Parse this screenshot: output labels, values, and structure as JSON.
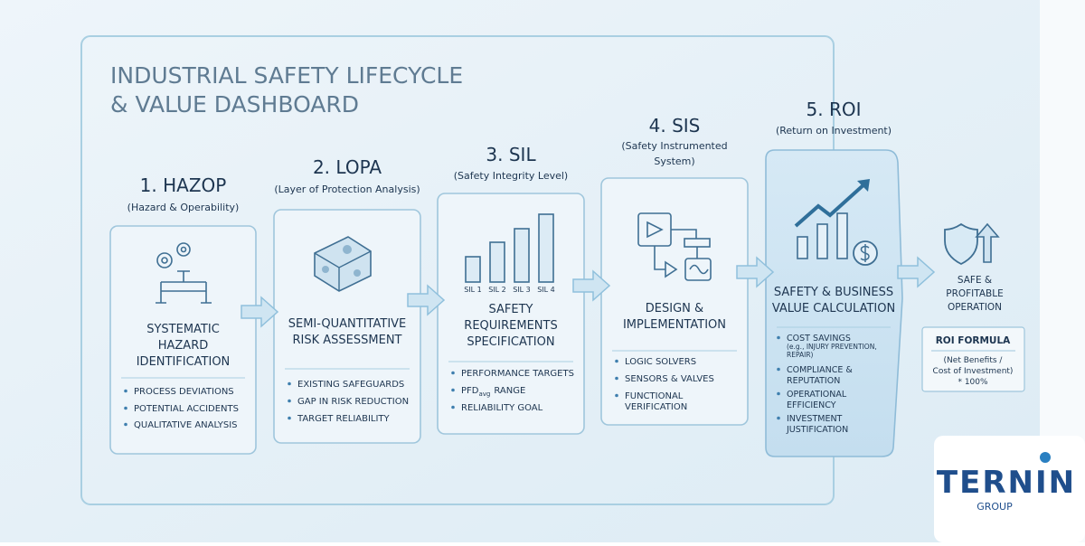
{
  "header": {
    "title": [
      "INDUSTRIAL SAFETY LIFECYCLE",
      "& VALUE DASHBOARD"
    ]
  },
  "stages": [
    {
      "title": "1. HAZOP",
      "subtitle": [
        "(Hazard & Operability)"
      ],
      "heading": [
        "SYSTEMATIC",
        "HAZARD",
        "IDENTIFICATION"
      ],
      "bullets": [
        [
          "PROCESS DEVIATIONS"
        ],
        [
          "POTENTIAL ACCIDENTS"
        ],
        [
          "QUALITATIVE ANALYSIS"
        ]
      ]
    },
    {
      "title": "2. LOPA",
      "subtitle": [
        "(Layer of Protection Analysis)"
      ],
      "heading": [
        "SEMI-QUANTITATIVE",
        "RISK ASSESSMENT"
      ],
      "bullets": [
        [
          "EXISTING SAFEGUARDS"
        ],
        [
          "GAP IN RISK REDUCTION"
        ],
        [
          "TARGET RELIABILITY"
        ]
      ]
    },
    {
      "title": "3. SIL",
      "subtitle": [
        "(Safety Integrity Level)"
      ],
      "icon_labels": [
        "SIL 1",
        "SIL 2",
        "SIL 3",
        "SIL 4"
      ],
      "heading": [
        "SAFETY",
        "REQUIREMENTS",
        "SPECIFICATION"
      ],
      "bullets": [
        [
          "PERFORMANCE TARGETS"
        ],
        [
          "PFD",
          "avg",
          "RANGE"
        ],
        [
          "RELIABILITY GOAL"
        ]
      ]
    },
    {
      "title": "4. SIS",
      "subtitle": [
        "(Safety Instrumented",
        "System)"
      ],
      "heading": [
        "DESIGN &",
        "IMPLEMENTATION"
      ],
      "bullets": [
        [
          "LOGIC SOLVERS"
        ],
        [
          "SENSORS & VALVES"
        ],
        [
          "FUNCTIONAL",
          "VERIFICATION"
        ]
      ]
    },
    {
      "title": "5. ROI",
      "subtitle": [
        "(Return on Investment)"
      ],
      "heading": [
        "SAFETY & BUSINESS",
        "VALUE CALCULATION"
      ],
      "bullets": [
        [
          "COST SAVINGS",
          "(e.g., INJURY PREVENTION,",
          "REPAIR)"
        ],
        [
          "COMPLIANCE &",
          "REPUTATION"
        ],
        [
          "OPERATIONAL",
          "EFFICIENCY"
        ],
        [
          "INVESTMENT",
          "JUSTIFICATION"
        ]
      ]
    }
  ],
  "outcome": {
    "label": [
      "SAFE &",
      "PROFITABLE",
      "OPERATION"
    ],
    "formula_title": "ROI FORMULA",
    "formula": [
      "(Net Benefits /",
      "Cost of Investment)",
      "* 100%"
    ]
  },
  "logo": {
    "name": "TERNIN",
    "sub": "GROUP"
  }
}
